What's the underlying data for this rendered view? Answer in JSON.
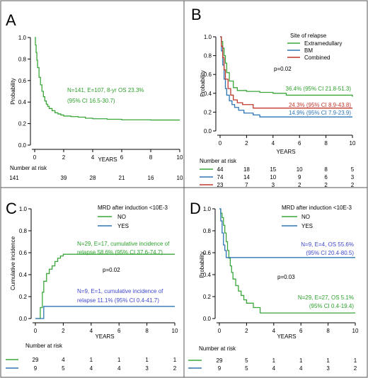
{
  "chart_data": [
    {
      "type": "line",
      "panel_label": "A",
      "xlabel": "YEARS",
      "ylabel": "Probability",
      "xlim": [
        0,
        10
      ],
      "ylim": [
        0,
        1
      ],
      "x_ticks": [
        "0",
        "2",
        "4",
        "6",
        "8",
        "10"
      ],
      "y_ticks": [
        "0.0",
        "0.2",
        "0.4",
        "0.6",
        "0.8",
        "1.0"
      ],
      "annotations": [
        {
          "text": "N=141, E=107, 8-yr OS 23.3%",
          "color": "#2ca02c"
        },
        {
          "text": "(95% CI 16.5-30.7)",
          "color": "#2ca02c"
        }
      ],
      "series": [
        {
          "color": "#3aa63a",
          "x": [
            0,
            0.05,
            0.1,
            0.15,
            0.2,
            0.3,
            0.4,
            0.5,
            0.6,
            0.7,
            0.8,
            0.9,
            1.0,
            1.2,
            1.4,
            1.6,
            1.8,
            2.0,
            2.5,
            3.0,
            3.5,
            4.0,
            5.0,
            6.0,
            8.0,
            10.0
          ],
          "y": [
            1.0,
            0.93,
            0.86,
            0.79,
            0.72,
            0.63,
            0.56,
            0.5,
            0.45,
            0.41,
            0.38,
            0.36,
            0.34,
            0.32,
            0.3,
            0.29,
            0.28,
            0.27,
            0.265,
            0.26,
            0.25,
            0.245,
            0.24,
            0.235,
            0.233,
            0.233
          ]
        }
      ],
      "risk_table": {
        "title": "Number at risk",
        "rows": [
          {
            "color": "#000000",
            "values": [
              "141",
              "39",
              "28",
              "21",
              "16",
              "10"
            ]
          }
        ]
      }
    },
    {
      "type": "line",
      "panel_label": "B",
      "xlabel": "YEARS",
      "ylabel": "Probability",
      "xlim": [
        0,
        10
      ],
      "ylim": [
        0,
        1
      ],
      "x_ticks": [
        "0",
        "2",
        "4",
        "6",
        "8",
        "10"
      ],
      "y_ticks": [
        "0.0",
        "0.2",
        "0.4",
        "0.6",
        "0.8",
        "1.0"
      ],
      "legend_title": "Site of relapse",
      "legend_position": "top-right",
      "pvalue": "p=0.02",
      "annotations": [
        {
          "text": "36.4% (95% CI 21.8-51.3)",
          "color": "#2ca02c"
        },
        {
          "text": "24.3% (95% CI 8.9-43.8)",
          "color": "#c0392b"
        },
        {
          "text": "14.9% (95% CI 7.9-23.9)",
          "color": "#2e75b6"
        }
      ],
      "series": [
        {
          "name": "Extramedullary",
          "color": "#3aa63a",
          "x": [
            0,
            0.1,
            0.2,
            0.3,
            0.4,
            0.5,
            0.7,
            1.0,
            1.3,
            2.0,
            3.0,
            4.0,
            5.0,
            10.0
          ],
          "y": [
            1.0,
            0.95,
            0.88,
            0.8,
            0.72,
            0.62,
            0.53,
            0.46,
            0.43,
            0.42,
            0.41,
            0.4,
            0.38,
            0.364
          ]
        },
        {
          "name": "BM",
          "color": "#2e75b6",
          "x": [
            0,
            0.1,
            0.2,
            0.3,
            0.4,
            0.5,
            0.7,
            0.9,
            1.1,
            1.4,
            1.8,
            2.5,
            3.0,
            10.0
          ],
          "y": [
            1.0,
            0.85,
            0.7,
            0.55,
            0.45,
            0.38,
            0.32,
            0.28,
            0.25,
            0.22,
            0.19,
            0.17,
            0.149,
            0.149
          ]
        },
        {
          "name": "Combined",
          "color": "#c0392b",
          "x": [
            0,
            0.1,
            0.2,
            0.3,
            0.4,
            0.6,
            0.8,
            1.0,
            1.3,
            1.7,
            2.5,
            10.0
          ],
          "y": [
            1.0,
            0.9,
            0.78,
            0.65,
            0.55,
            0.45,
            0.38,
            0.33,
            0.3,
            0.28,
            0.243,
            0.243
          ]
        }
      ],
      "risk_table": {
        "title": "Number at risk",
        "rows": [
          {
            "color": "#3aa63a",
            "values": [
              "44",
              "18",
              "15",
              "10",
              "8",
              "5"
            ]
          },
          {
            "color": "#2e75b6",
            "values": [
              "74",
              "14",
              "10",
              "9",
              "6",
              "3"
            ]
          },
          {
            "color": "#c0392b",
            "values": [
              "23",
              "7",
              "3",
              "2",
              "2",
              "2"
            ]
          }
        ]
      }
    },
    {
      "type": "line",
      "panel_label": "C",
      "xlabel": "YEARS",
      "ylabel": "Cumulative incidence",
      "xlim": [
        0,
        10
      ],
      "ylim": [
        0,
        1
      ],
      "x_ticks": [
        "0",
        "2",
        "4",
        "6",
        "8",
        "10"
      ],
      "y_ticks": [
        "0.0",
        "0.2",
        "0.4",
        "0.6",
        "0.8",
        "1.0"
      ],
      "legend_title": "MRD after induction <10E-3",
      "legend_position": "top-right",
      "pvalue": "p=0.02",
      "annotations": [
        {
          "text": "N=29, E=17, cumulative incidence of",
          "color": "#2ca02c"
        },
        {
          "text": "relapse 58.6% (95% CI 37.6-74.7)",
          "color": "#2ca02c"
        },
        {
          "text": "N=9, E=1, cumulative incidence of",
          "color": "#3f48cc"
        },
        {
          "text": "relapse 11.1% (95% CI 0.4-41.7)",
          "color": "#3f48cc"
        }
      ],
      "series": [
        {
          "name": "NO",
          "color": "#3aa63a",
          "x": [
            0,
            0.3,
            0.35,
            0.5,
            0.6,
            0.8,
            1.0,
            1.2,
            1.4,
            1.6,
            1.8,
            2.0,
            10.0
          ],
          "y": [
            0,
            0,
            0.1,
            0.24,
            0.34,
            0.41,
            0.45,
            0.48,
            0.52,
            0.55,
            0.57,
            0.586,
            0.586
          ]
        },
        {
          "name": "YES",
          "color": "#2e75b6",
          "x": [
            0,
            0.5,
            0.6,
            10.0
          ],
          "y": [
            0,
            0,
            0.111,
            0.111
          ]
        }
      ],
      "risk_table": {
        "title": "Number at risk",
        "rows": [
          {
            "color": "#3aa63a",
            "values": [
              "29",
              "4",
              "1",
              "1",
              "1",
              "1"
            ]
          },
          {
            "color": "#2e75b6",
            "values": [
              "9",
              "5",
              "4",
              "4",
              "3",
              "2"
            ]
          }
        ]
      }
    },
    {
      "type": "line",
      "panel_label": "D",
      "xlabel": "YEARS",
      "ylabel": "Probability",
      "xlim": [
        0,
        10
      ],
      "ylim": [
        0,
        1
      ],
      "x_ticks": [
        "0",
        "2",
        "4",
        "6",
        "8",
        "10"
      ],
      "y_ticks": [
        "0.0",
        "0.2",
        "0.4",
        "0.6",
        "0.8",
        "1.0"
      ],
      "legend_title": "MRD after induction <10E-3",
      "legend_position": "top-right",
      "pvalue": "p=0.03",
      "annotations": [
        {
          "text": "N=9, E=4, OS 55.6%",
          "color": "#3f48cc"
        },
        {
          "text": "(95% CI 20.4-80.5)",
          "color": "#3f48cc"
        },
        {
          "text": "N=29, E=27, OS 5.1%",
          "color": "#2ca02c"
        },
        {
          "text": "(95% CI 0.4-19.4)",
          "color": "#2ca02c"
        }
      ],
      "series": [
        {
          "name": "NO",
          "color": "#3aa63a",
          "x": [
            0,
            0.1,
            0.2,
            0.3,
            0.4,
            0.5,
            0.6,
            0.7,
            0.8,
            0.9,
            1.0,
            1.2,
            1.4,
            1.6,
            1.8,
            2.0,
            2.5,
            3.0,
            10.0
          ],
          "y": [
            1.0,
            0.96,
            0.92,
            0.85,
            0.78,
            0.7,
            0.62,
            0.55,
            0.48,
            0.42,
            0.36,
            0.3,
            0.25,
            0.21,
            0.17,
            0.14,
            0.1,
            0.051,
            0.051
          ]
        },
        {
          "name": "YES",
          "color": "#2e75b6",
          "x": [
            0,
            0.1,
            0.2,
            0.3,
            0.4,
            0.5,
            10.0
          ],
          "y": [
            1.0,
            0.89,
            0.78,
            0.67,
            0.62,
            0.556,
            0.556
          ]
        }
      ],
      "risk_table": {
        "title": "Number at risk",
        "rows": [
          {
            "color": "#3aa63a",
            "values": [
              "29",
              "5",
              "1",
              "1",
              "1",
              "1"
            ]
          },
          {
            "color": "#2e75b6",
            "values": [
              "9",
              "5",
              "4",
              "4",
              "3",
              "2"
            ]
          }
        ]
      }
    }
  ]
}
